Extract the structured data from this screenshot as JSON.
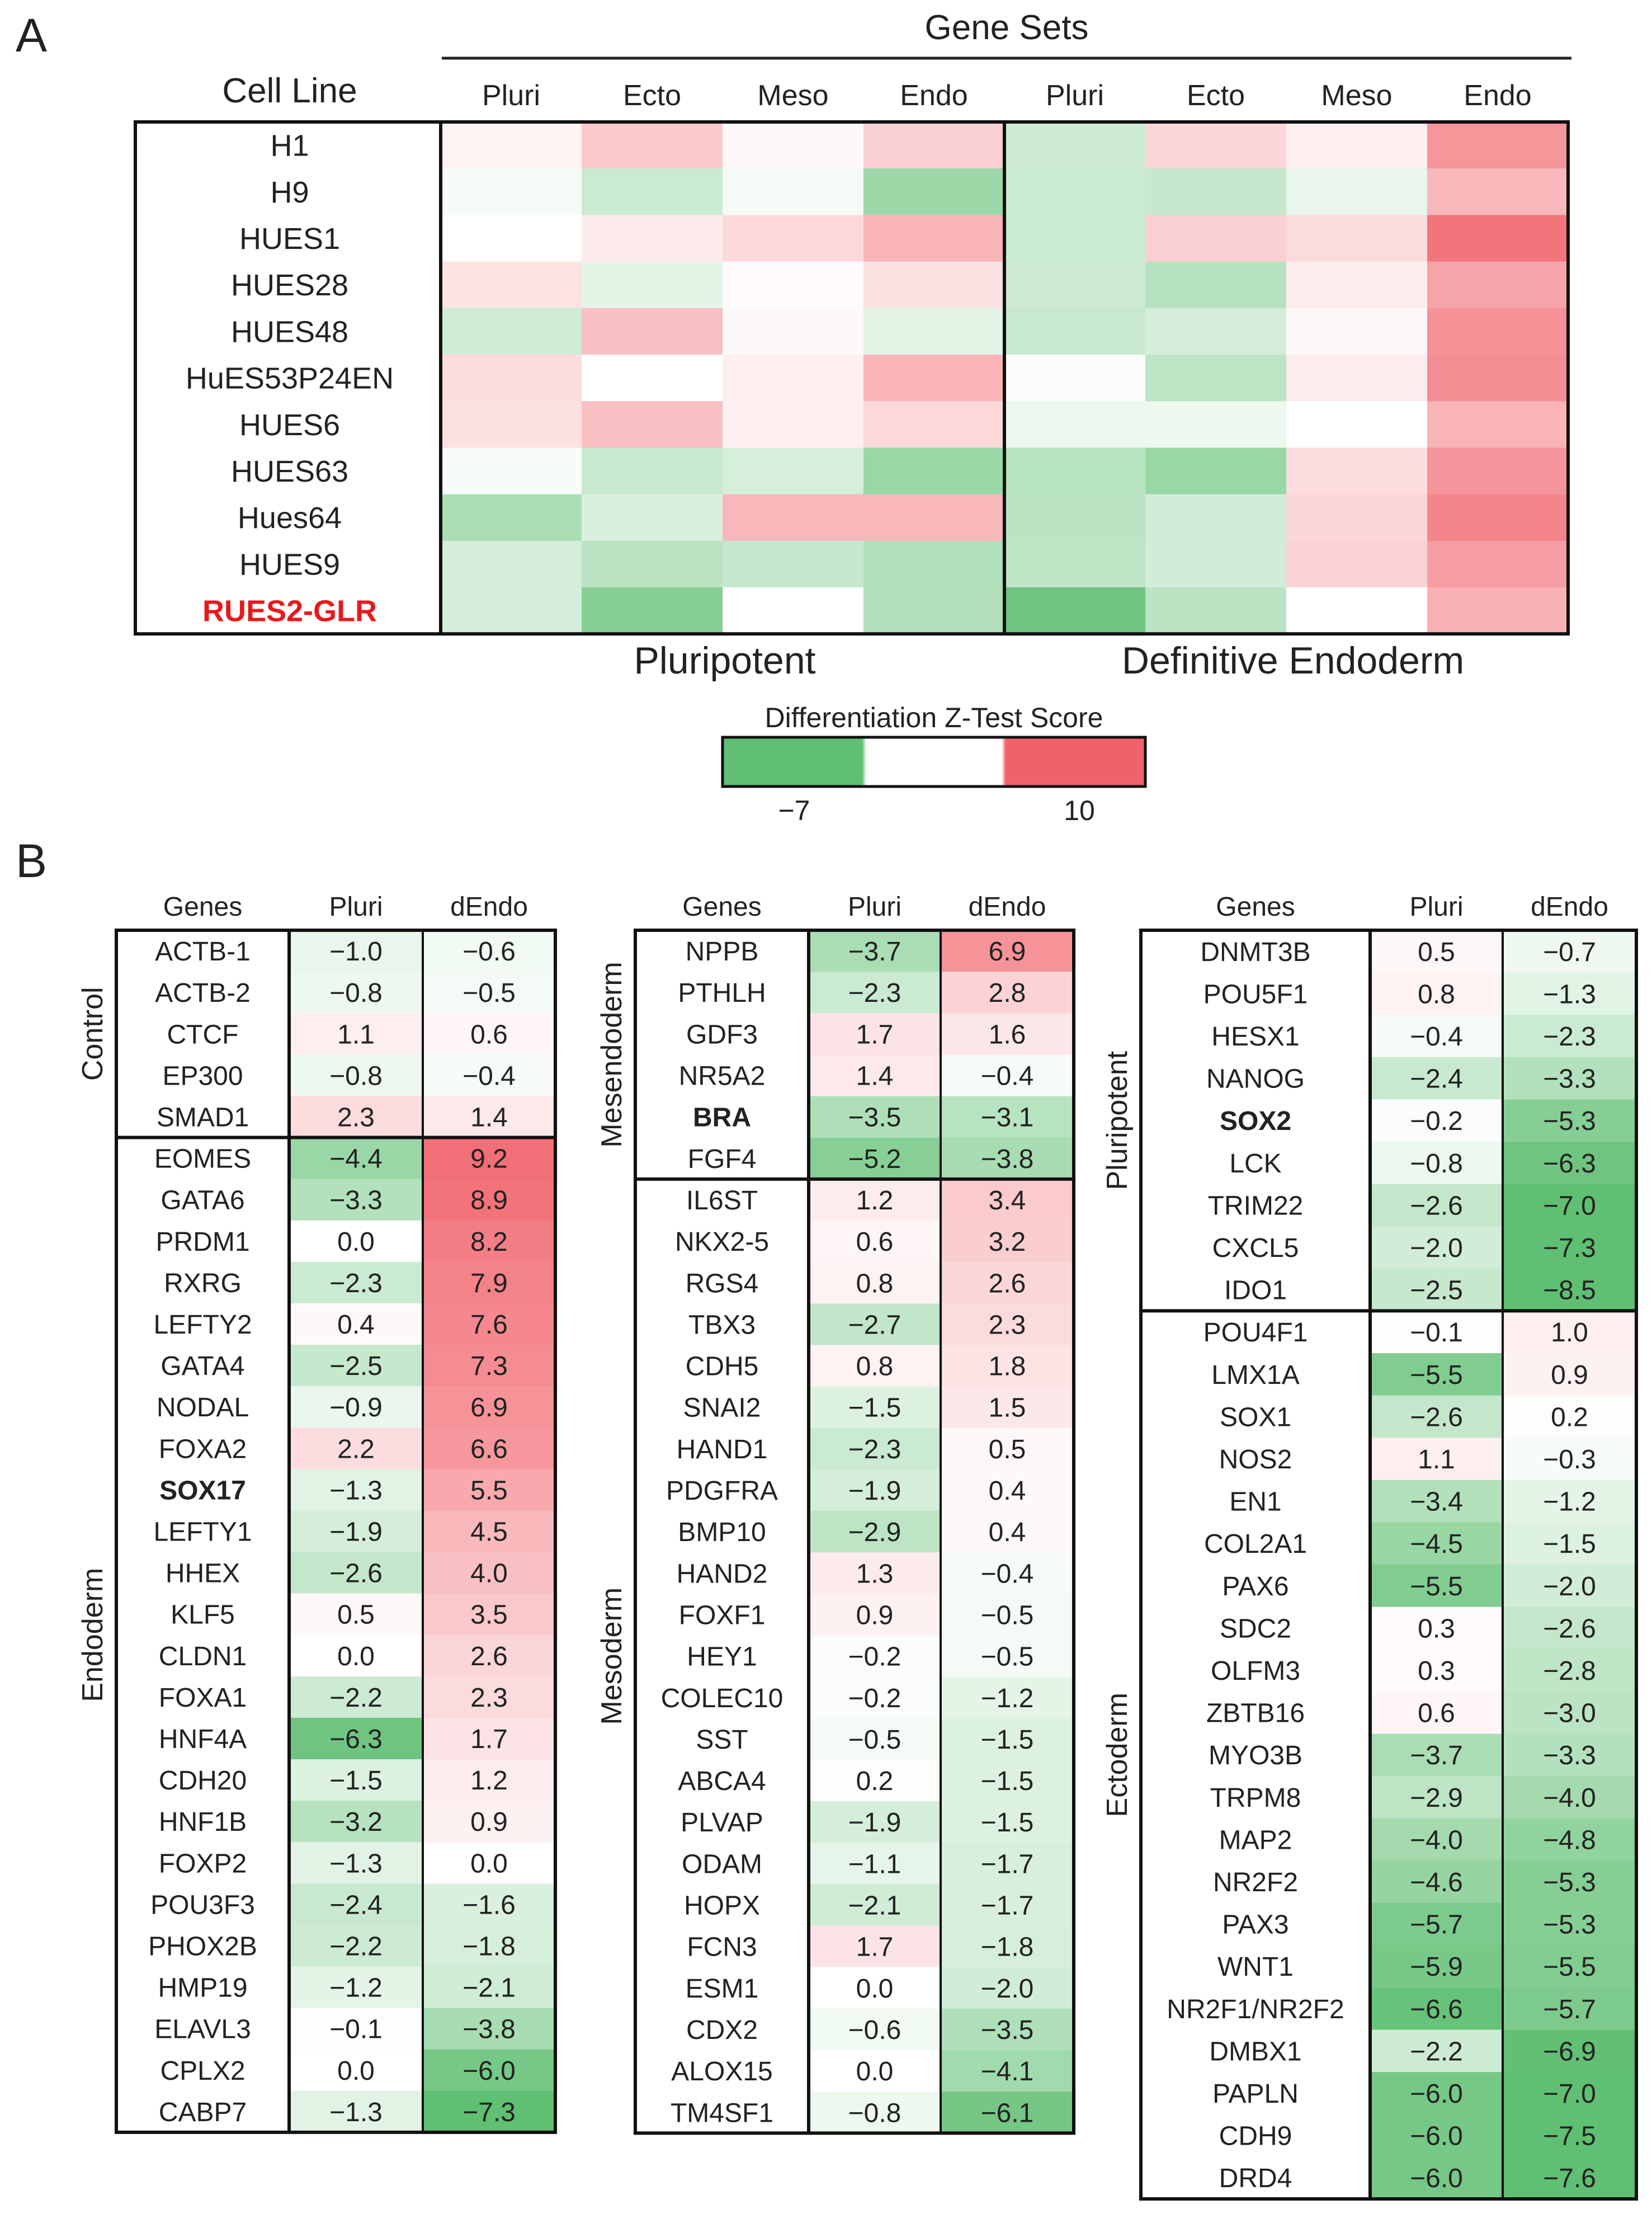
{
  "panel_labels": {
    "a": "A",
    "b": "B"
  },
  "panel_a": {
    "top_header": "Gene Sets",
    "cell_line_header": "Cell Line",
    "columns": [
      "Pluri",
      "Ecto",
      "Meso",
      "Endo",
      "Pluri",
      "Ecto",
      "Meso",
      "Endo"
    ],
    "group_labels": [
      "Pluripotent",
      "Definitive Endoderm"
    ],
    "rows": [
      "H1",
      "H9",
      "HUES1",
      "HUES28",
      "HUES48",
      "HuES53P24EN",
      "HUES6",
      "HUES63",
      "Hues64",
      "HUES9",
      "RUES2-GLR"
    ],
    "highlight_row": "RUES2-GLR",
    "highlight_color": "#e8191c",
    "values": [
      [
        0.8,
        3.5,
        0.4,
        3.0,
        -2.2,
        2.6,
        1.0,
        6.7
      ],
      [
        -0.5,
        -2.3,
        -0.5,
        -4.3,
        -2.3,
        -2.5,
        -1.0,
        4.5
      ],
      [
        0.0,
        1.3,
        2.4,
        4.8,
        -2.3,
        3.0,
        2.3,
        8.8
      ],
      [
        1.8,
        -1.2,
        0.3,
        1.9,
        -2.2,
        -3.2,
        1.2,
        5.8
      ],
      [
        -2.1,
        4.0,
        0.4,
        -1.2,
        -2.4,
        -1.9,
        0.5,
        7.0
      ],
      [
        2.2,
        0.0,
        1.0,
        4.8,
        -0.2,
        -2.9,
        1.2,
        7.2
      ],
      [
        1.9,
        4.0,
        1.0,
        2.4,
        -0.8,
        -0.8,
        0.0,
        4.8
      ],
      [
        -0.3,
        -2.4,
        -1.8,
        -4.4,
        -3.1,
        -4.4,
        2.2,
        6.8
      ],
      [
        -3.7,
        -1.6,
        4.6,
        4.6,
        -3.0,
        -2.0,
        2.6,
        7.8
      ],
      [
        -1.9,
        -3.0,
        -2.5,
        -3.4,
        -2.8,
        -2.0,
        2.8,
        6.2
      ],
      [
        -1.9,
        -5.3,
        0.0,
        -3.4,
        -6.3,
        -3.0,
        0.0,
        5.0
      ]
    ]
  },
  "legend": {
    "title": "Differentiation Z-Test Score",
    "min_label": "−7",
    "max_label": "10"
  },
  "colors": {
    "low": "#5fbf72",
    "mid": "#ffffff",
    "high": "#f0626a"
  },
  "panel_b": {
    "headers": [
      "Genes",
      "Pluri",
      "dEndo"
    ],
    "tables": [
      {
        "groups": [
          {
            "label": "Control",
            "rows": [
              [
                "ACTB-1",
                "−1.0",
                "−0.6"
              ],
              [
                "ACTB-2",
                "−0.8",
                "−0.5"
              ],
              [
                "CTCF",
                "1.1",
                "0.6"
              ],
              [
                "EP300",
                "−0.8",
                "−0.4"
              ],
              [
                "SMAD1",
                "2.3",
                "1.4"
              ]
            ]
          },
          {
            "label": "Endoderm",
            "rows": [
              [
                "EOMES",
                "−4.4",
                "9.2"
              ],
              [
                "GATA6",
                "−3.3",
                "8.9"
              ],
              [
                "PRDM1",
                "0.0",
                "8.2"
              ],
              [
                "RXRG",
                "−2.3",
                "7.9"
              ],
              [
                "LEFTY2",
                "0.4",
                "7.6"
              ],
              [
                "GATA4",
                "−2.5",
                "7.3"
              ],
              [
                "NODAL",
                "−0.9",
                "6.9"
              ],
              [
                "FOXA2",
                "2.2",
                "6.6"
              ],
              [
                "SOX17",
                "−1.3",
                "5.5"
              ],
              [
                "LEFTY1",
                "−1.9",
                "4.5"
              ],
              [
                "HHEX",
                "−2.6",
                "4.0"
              ],
              [
                "KLF5",
                "0.5",
                "3.5"
              ],
              [
                "CLDN1",
                "0.0",
                "2.6"
              ],
              [
                "FOXA1",
                "−2.2",
                "2.3"
              ],
              [
                "HNF4A",
                "−6.3",
                "1.7"
              ],
              [
                "CDH20",
                "−1.5",
                "1.2"
              ],
              [
                "HNF1B",
                "−3.2",
                "0.9"
              ],
              [
                "FOXP2",
                "−1.3",
                "0.0"
              ],
              [
                "POU3F3",
                "−2.4",
                "−1.6"
              ],
              [
                "PHOX2B",
                "−2.2",
                "−1.8"
              ],
              [
                "HMP19",
                "−1.2",
                "−2.1"
              ],
              [
                "ELAVL3",
                "−0.1",
                "−3.8"
              ],
              [
                "CPLX2",
                "0.0",
                "−6.0"
              ],
              [
                "CABP7",
                "−1.3",
                "−7.3"
              ]
            ]
          }
        ]
      },
      {
        "groups": [
          {
            "label": "Mesendoderm",
            "rows": [
              [
                "NPPB",
                "−3.7",
                "6.9"
              ],
              [
                "PTHLH",
                "−2.3",
                "2.8"
              ],
              [
                "GDF3",
                "1.7",
                "1.6"
              ],
              [
                "NR5A2",
                "1.4",
                "−0.4"
              ],
              [
                "BRA",
                "−3.5",
                "−3.1"
              ],
              [
                "FGF4",
                "−5.2",
                "−3.8"
              ]
            ]
          },
          {
            "label": "Mesoderm",
            "rows": [
              [
                "IL6ST",
                "1.2",
                "3.4"
              ],
              [
                "NKX2-5",
                "0.6",
                "3.2"
              ],
              [
                "RGS4",
                "0.8",
                "2.6"
              ],
              [
                "TBX3",
                "−2.7",
                "2.3"
              ],
              [
                "CDH5",
                "0.8",
                "1.8"
              ],
              [
                "SNAI2",
                "−1.5",
                "1.5"
              ],
              [
                "HAND1",
                "−2.3",
                "0.5"
              ],
              [
                "PDGFRA",
                "−1.9",
                "0.4"
              ],
              [
                "BMP10",
                "−2.9",
                "0.4"
              ],
              [
                "HAND2",
                "1.3",
                "−0.4"
              ],
              [
                "FOXF1",
                "0.9",
                "−0.5"
              ],
              [
                "HEY1",
                "−0.2",
                "−0.5"
              ],
              [
                "COLEC10",
                "−0.2",
                "−1.2"
              ],
              [
                "SST",
                "−0.5",
                "−1.5"
              ],
              [
                "ABCA4",
                "0.2",
                "−1.5"
              ],
              [
                "PLVAP",
                "−1.9",
                "−1.5"
              ],
              [
                "ODAM",
                "−1.1",
                "−1.7"
              ],
              [
                "HOPX",
                "−2.1",
                "−1.7"
              ],
              [
                "FCN3",
                "1.7",
                "−1.8"
              ],
              [
                "ESM1",
                "0.0",
                "−2.0"
              ],
              [
                "CDX2",
                "−0.6",
                "−3.5"
              ],
              [
                "ALOX15",
                "0.0",
                "−4.1"
              ],
              [
                "TM4SF1",
                "−0.8",
                "−6.1"
              ]
            ]
          }
        ]
      },
      {
        "groups": [
          {
            "label": "Pluripotent",
            "rows": [
              [
                "DNMT3B",
                "0.5",
                "−0.7"
              ],
              [
                "POU5F1",
                "0.8",
                "−1.3"
              ],
              [
                "HESX1",
                "−0.4",
                "−2.3"
              ],
              [
                "NANOG",
                "−2.4",
                "−3.3"
              ],
              [
                "SOX2",
                "−0.2",
                "−5.3"
              ],
              [
                "LCK",
                "−0.8",
                "−6.3"
              ],
              [
                "TRIM22",
                "−2.6",
                "−7.0"
              ],
              [
                "CXCL5",
                "−2.0",
                "−7.3"
              ],
              [
                "IDO1",
                "−2.5",
                "−8.5"
              ]
            ]
          },
          {
            "label": "Ectoderm",
            "rows": [
              [
                "POU4F1",
                "−0.1",
                "1.0"
              ],
              [
                "LMX1A",
                "−5.5",
                "0.9"
              ],
              [
                "SOX1",
                "−2.6",
                "0.2"
              ],
              [
                "NOS2",
                "1.1",
                "−0.3"
              ],
              [
                "EN1",
                "−3.4",
                "−1.2"
              ],
              [
                "COL2A1",
                "−4.5",
                "−1.5"
              ],
              [
                "PAX6",
                "−5.5",
                "−2.0"
              ],
              [
                "SDC2",
                "0.3",
                "−2.6"
              ],
              [
                "OLFM3",
                "0.3",
                "−2.8"
              ],
              [
                "ZBTB16",
                "0.6",
                "−3.0"
              ],
              [
                "MYO3B",
                "−3.7",
                "−3.3"
              ],
              [
                "TRPM8",
                "−2.9",
                "−4.0"
              ],
              [
                "MAP2",
                "−4.0",
                "−4.8"
              ],
              [
                "NR2F2",
                "−4.6",
                "−5.3"
              ],
              [
                "PAX3",
                "−5.7",
                "−5.3"
              ],
              [
                "WNT1",
                "−5.9",
                "−5.5"
              ],
              [
                "NR2F1/NR2F2",
                "−6.6",
                "−5.7"
              ],
              [
                "DMBX1",
                "−2.2",
                "−6.9"
              ],
              [
                "PAPLN",
                "−6.0",
                "−7.0"
              ],
              [
                "CDH9",
                "−6.0",
                "−7.5"
              ],
              [
                "DRD4",
                "−6.0",
                "−7.6"
              ]
            ]
          }
        ]
      }
    ],
    "bold_genes": [
      "SOX17",
      "BRA",
      "SOX2"
    ]
  },
  "chart_data": [
    {
      "type": "heatmap",
      "title": "Gene Sets",
      "xlabel": "Pluripotent | Definitive Endoderm",
      "ylabel": "Cell Line",
      "x": [
        "Pluri",
        "Ecto",
        "Meso",
        "Endo",
        "Pluri",
        "Ecto",
        "Meso",
        "Endo"
      ],
      "y": [
        "H1",
        "H9",
        "HUES1",
        "HUES28",
        "HUES48",
        "HuES53P24EN",
        "HUES6",
        "HUES63",
        "Hues64",
        "HUES9",
        "RUES2-GLR"
      ],
      "color_range": [
        -7,
        10
      ],
      "legend_title": "Differentiation Z-Test Score"
    },
    {
      "type": "table",
      "columns": [
        "Genes",
        "Pluri",
        "dEndo"
      ],
      "color_range": [
        -7,
        10
      ],
      "note": "Cell values listed in panel_b.tables"
    }
  ]
}
